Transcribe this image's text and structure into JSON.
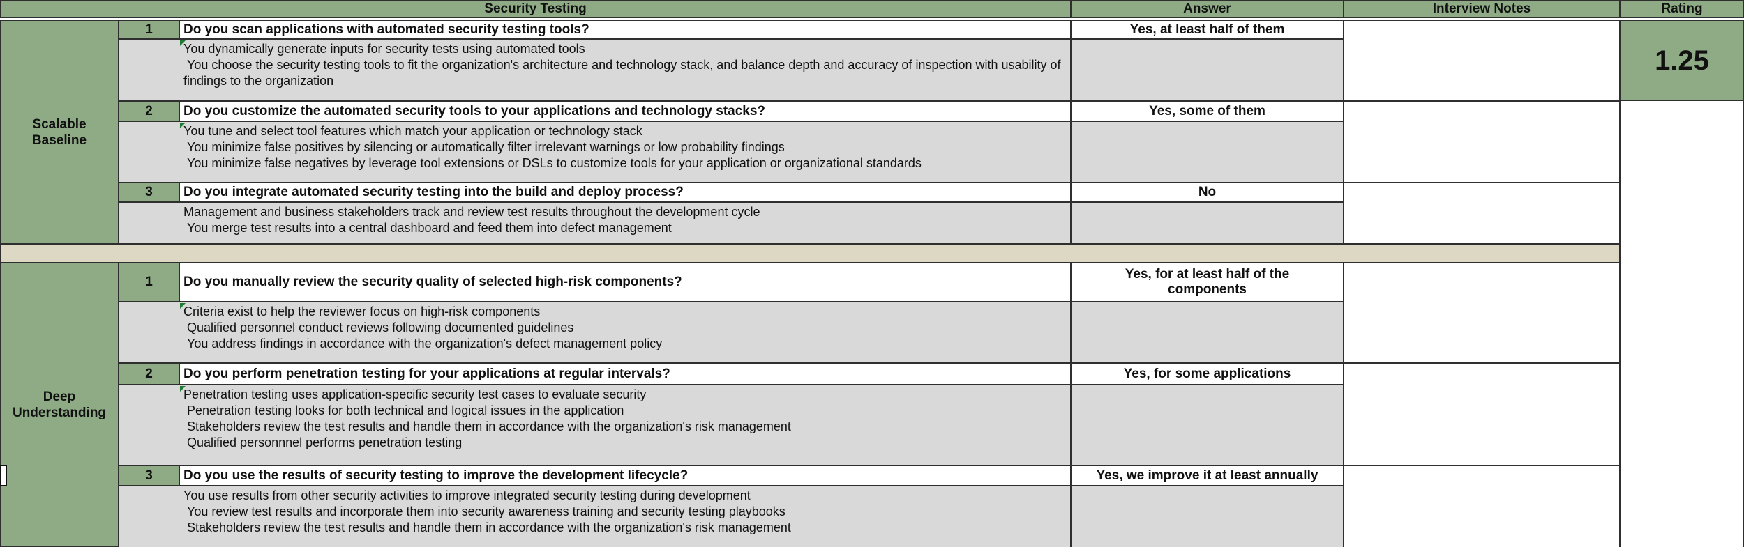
{
  "sheet": {
    "header": {
      "title": "Security Testing",
      "answer_col": "Answer",
      "notes_col": "Interview Notes",
      "rating_col": "Rating"
    },
    "rating": {
      "value": "1.25"
    },
    "colors": {
      "green": "#8eab86",
      "gray": "#d9d9d9",
      "beige": "#ddd8c3",
      "marker_green": "#1f7a33"
    },
    "sections": [
      {
        "group_label": "Scalable\nBaseline",
        "blocks": [
          {
            "num": "1",
            "question": "Do you scan applications with automated security testing tools?",
            "answer": "Yes, at least half of them",
            "details": "You dynamically generate inputs for security tests using automated tools\n You choose the security testing tools to fit the organization's architecture and technology stack, and balance depth and accuracy of inspection with usability of findings to the organization",
            "has_note_marker": true
          },
          {
            "num": "2",
            "question": "Do you customize the automated security tools to your applications and technology stacks?",
            "answer": "Yes, some of them",
            "details": "You tune and select tool features which match your application or technology stack\n You minimize false positives by silencing or automatically filter irrelevant warnings or low probability findings\n You minimize false negatives by leverage tool extensions or DSLs to customize tools for your application or organizational standards",
            "has_note_marker": true
          },
          {
            "num": "3",
            "question": "Do you integrate automated security testing into the build and deploy process?",
            "answer": "No",
            "details": "Management and business stakeholders track and review test results throughout the development cycle\n You merge test results into a central dashboard and feed them into defect management",
            "has_note_marker": false
          }
        ]
      },
      {
        "group_label": "Deep\nUnderstanding",
        "blocks": [
          {
            "num": "1",
            "question": "Do you manually review the security quality of selected high-risk components?",
            "answer": "Yes, for at least half of the\ncomponents",
            "details": "Criteria exist to help the reviewer focus on high-risk components\n Qualified personnel conduct reviews following documented guidelines\n You address findings in accordance with the organization's defect management policy",
            "has_note_marker": true
          },
          {
            "num": "2",
            "question": "Do you perform penetration testing for your applications at regular intervals?",
            "answer": "Yes, for some applications",
            "details": "Penetration testing uses application-specific security test cases to evaluate security\n Penetration testing looks for both technical and logical issues in the application\n Stakeholders review the test results and handle them in accordance with the organization's risk management\n Qualified personnnel performs penetration testing",
            "has_note_marker": true
          },
          {
            "num": "3",
            "question": "Do you use the results of security testing to improve the development lifecycle?",
            "answer": "Yes, we improve it at least annually",
            "details": "You use results from other security activities to improve integrated security testing during development\n You review test results and incorporate them into security awareness training and security testing playbooks\n Stakeholders review the test results and handle them in accordance with the organization's risk management",
            "has_note_marker": false
          }
        ]
      }
    ]
  }
}
